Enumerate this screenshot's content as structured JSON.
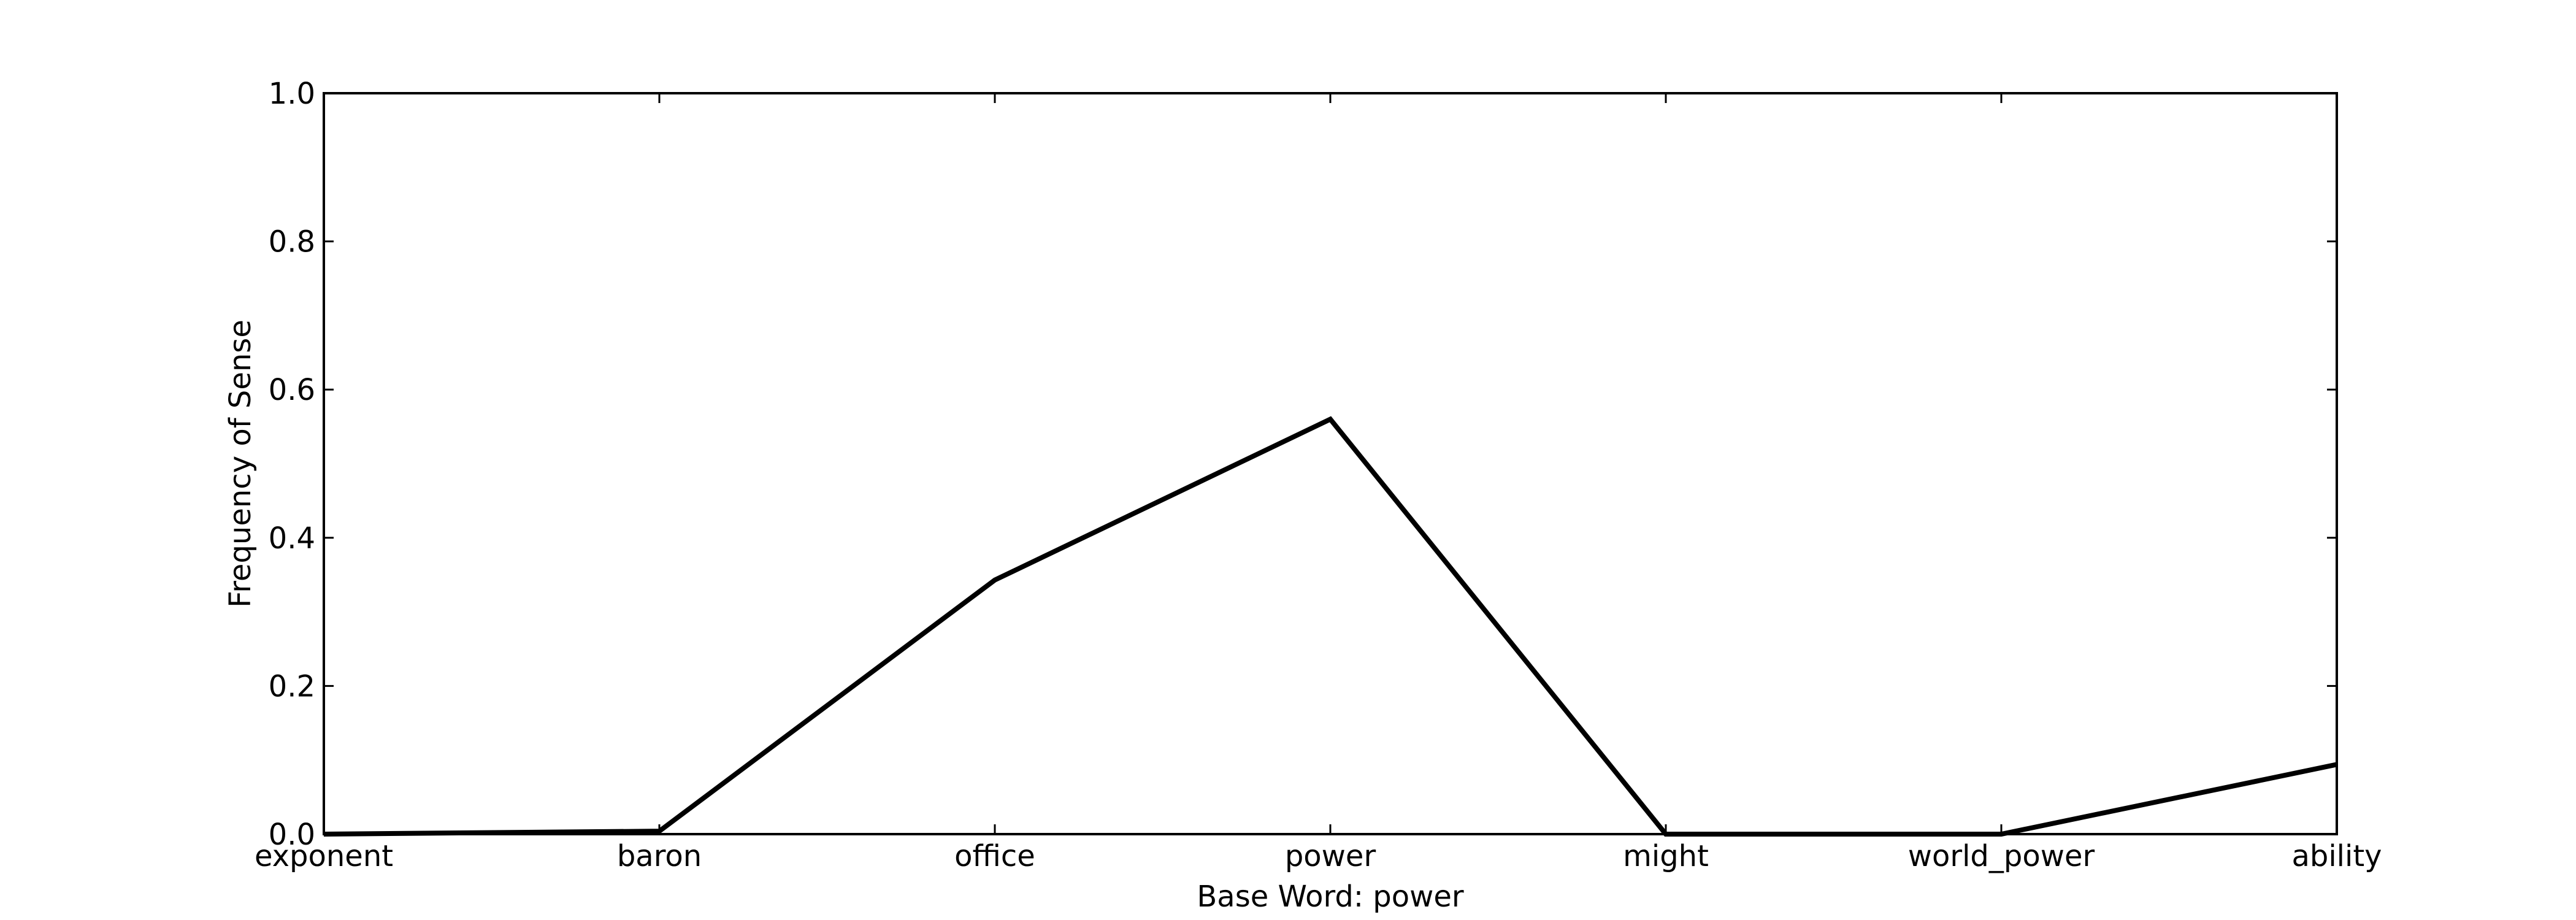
{
  "chart_data": {
    "type": "line",
    "title": "",
    "xlabel": "Base Word: power",
    "ylabel": "Frequency of Sense",
    "categories": [
      "exponent",
      "baron",
      "office",
      "power",
      "might",
      "world_power",
      "ability"
    ],
    "series": [
      {
        "values": [
          0.0,
          0.004,
          0.343,
          0.56,
          0.0,
          0.0,
          0.094
        ]
      }
    ],
    "ylim": [
      0,
      1.0
    ],
    "yticks": [
      "0.0",
      "0.2",
      "0.4",
      "0.6",
      "0.8",
      "1.0"
    ],
    "grid": false,
    "line_color": "#000000"
  }
}
